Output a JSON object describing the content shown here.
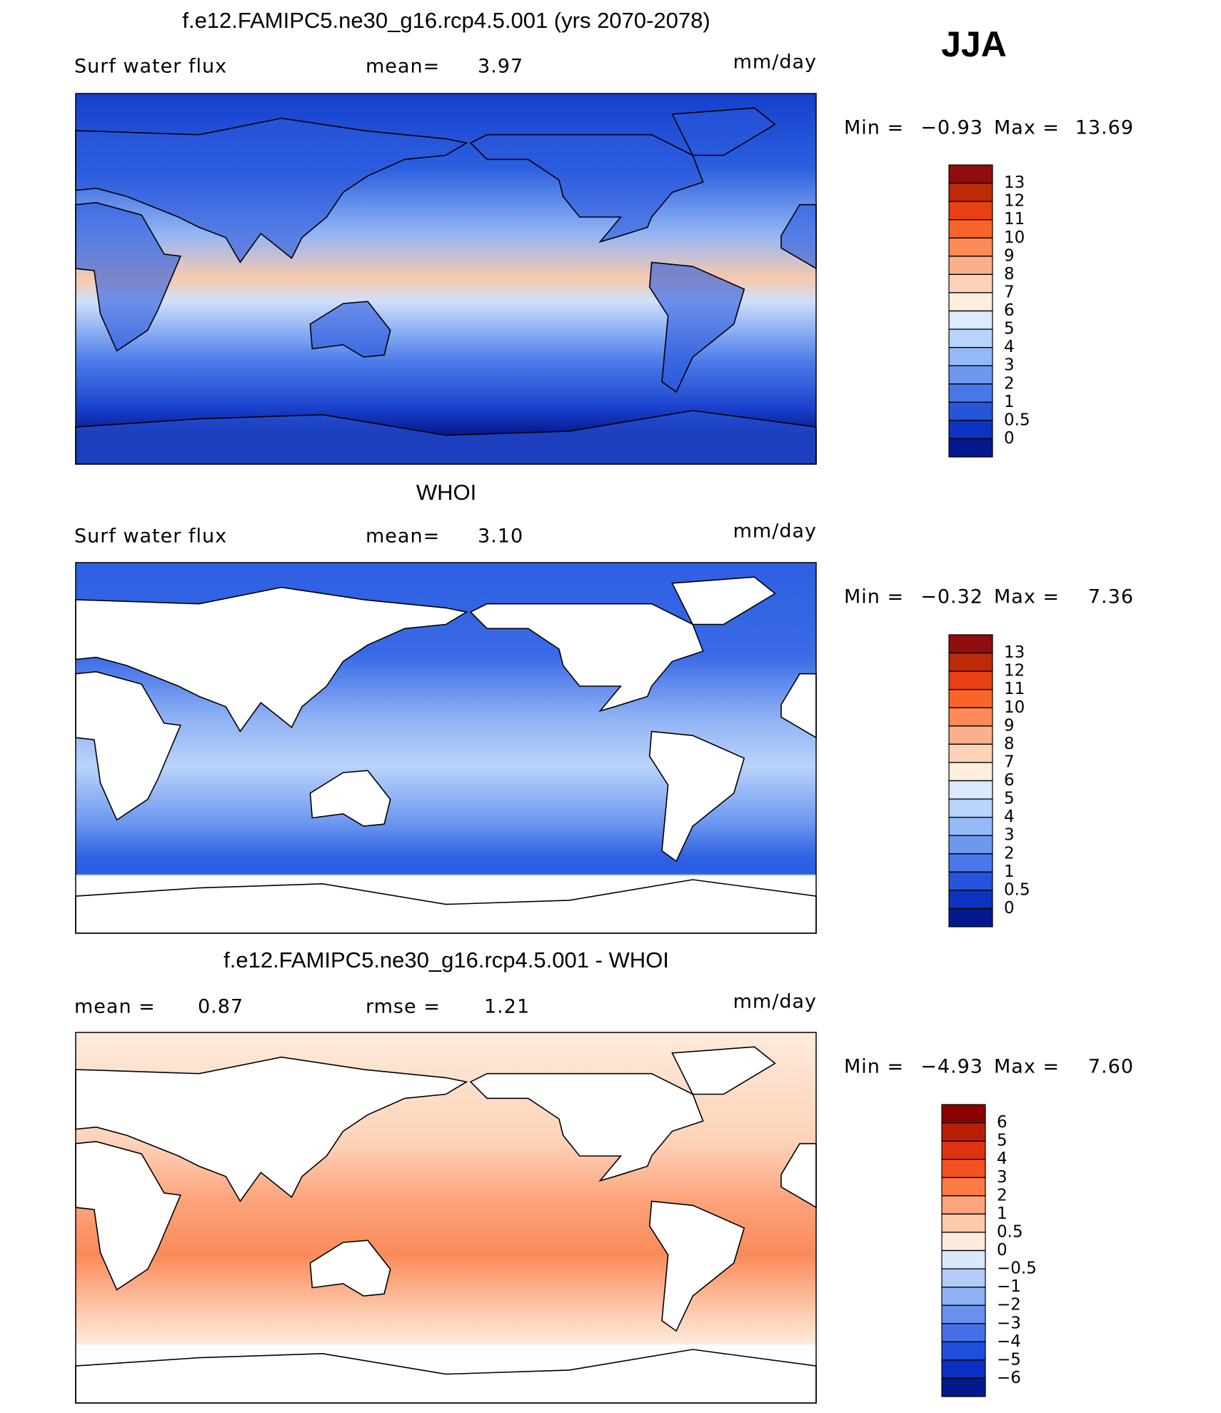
{
  "header": {
    "season": "JJA"
  },
  "panels": [
    {
      "title": "f.e12.FAMIPC5.ne30_g16.rcp4.5.001 (yrs 2070-2078)",
      "variable": "Surf water flux",
      "stats": [
        {
          "label": "mean=",
          "value": 3.97
        }
      ],
      "units": "mm/day",
      "min_label": "Min =",
      "min": {
        "value": -0.93,
        "label": "−0.93"
      },
      "max_label": "Max =",
      "max": 13.69,
      "levels": [
        13,
        12,
        11,
        10,
        9,
        8,
        7,
        6,
        5,
        4,
        3,
        2,
        1,
        0.5,
        0
      ],
      "colors": [
        "#8f0d0d",
        "#bd2a0a",
        "#e84012",
        "#f96428",
        "#fd8a57",
        "#fbb08c",
        "#fdd2b8",
        "#fdeedd",
        "#dbeafc",
        "#b9d3fa",
        "#95b9f7",
        "#6e98f0",
        "#4878ea",
        "#2555dd",
        "#0d33c2",
        "#05198f"
      ]
    },
    {
      "title": "WHOI",
      "variable": "Surf water flux",
      "stats": [
        {
          "label": "mean=",
          "value": {
            "value": 3.1,
            "label": "3.10"
          }
        }
      ],
      "units": "mm/day",
      "min_label": "Min =",
      "min": {
        "value": -0.32,
        "label": "−0.32"
      },
      "max_label": "Max =",
      "max": 7.36,
      "levels": [
        13,
        12,
        11,
        10,
        9,
        8,
        7,
        6,
        5,
        4,
        3,
        2,
        1,
        0.5,
        0
      ],
      "colors": [
        "#8f0d0d",
        "#bd2a0a",
        "#e84012",
        "#f96428",
        "#fd8a57",
        "#fbb08c",
        "#fdd2b8",
        "#fdeedd",
        "#dbeafc",
        "#b9d3fa",
        "#95b9f7",
        "#6e98f0",
        "#4878ea",
        "#2555dd",
        "#0d33c2",
        "#05198f"
      ]
    },
    {
      "title": "f.e12.FAMIPC5.ne30_g16.rcp4.5.001 - WHOI",
      "stats": [
        {
          "label": "mean =",
          "value": 0.87
        },
        {
          "label": "rmse =",
          "value": 1.21
        }
      ],
      "units": "mm/day",
      "min_label": "Min =",
      "min": {
        "value": -4.93,
        "label": "−4.93"
      },
      "max_label": "Max =",
      "max": {
        "value": 7.6,
        "label": "7.60"
      },
      "levels": [
        6,
        5,
        4,
        3,
        2,
        1,
        0.5,
        0,
        {
          "value": -0.5,
          "label": "−0.5"
        },
        {
          "value": -1,
          "label": "−1"
        },
        {
          "value": -2,
          "label": "−2"
        },
        {
          "value": -3,
          "label": "−3"
        },
        {
          "value": -4,
          "label": "−4"
        },
        {
          "value": -5,
          "label": "−5"
        },
        {
          "value": -6,
          "label": "−6"
        }
      ],
      "colors": [
        "#8b0000",
        "#b81e05",
        "#dd3310",
        "#f25220",
        "#fb7a45",
        "#fca47c",
        "#fdc9ab",
        "#feeadb",
        "#d9e8fd",
        "#b3cdfa",
        "#8fb1f6",
        "#6a90ef",
        "#4570e8",
        "#1f4edc",
        "#0b2fc0",
        "#041a8c"
      ]
    }
  ]
}
